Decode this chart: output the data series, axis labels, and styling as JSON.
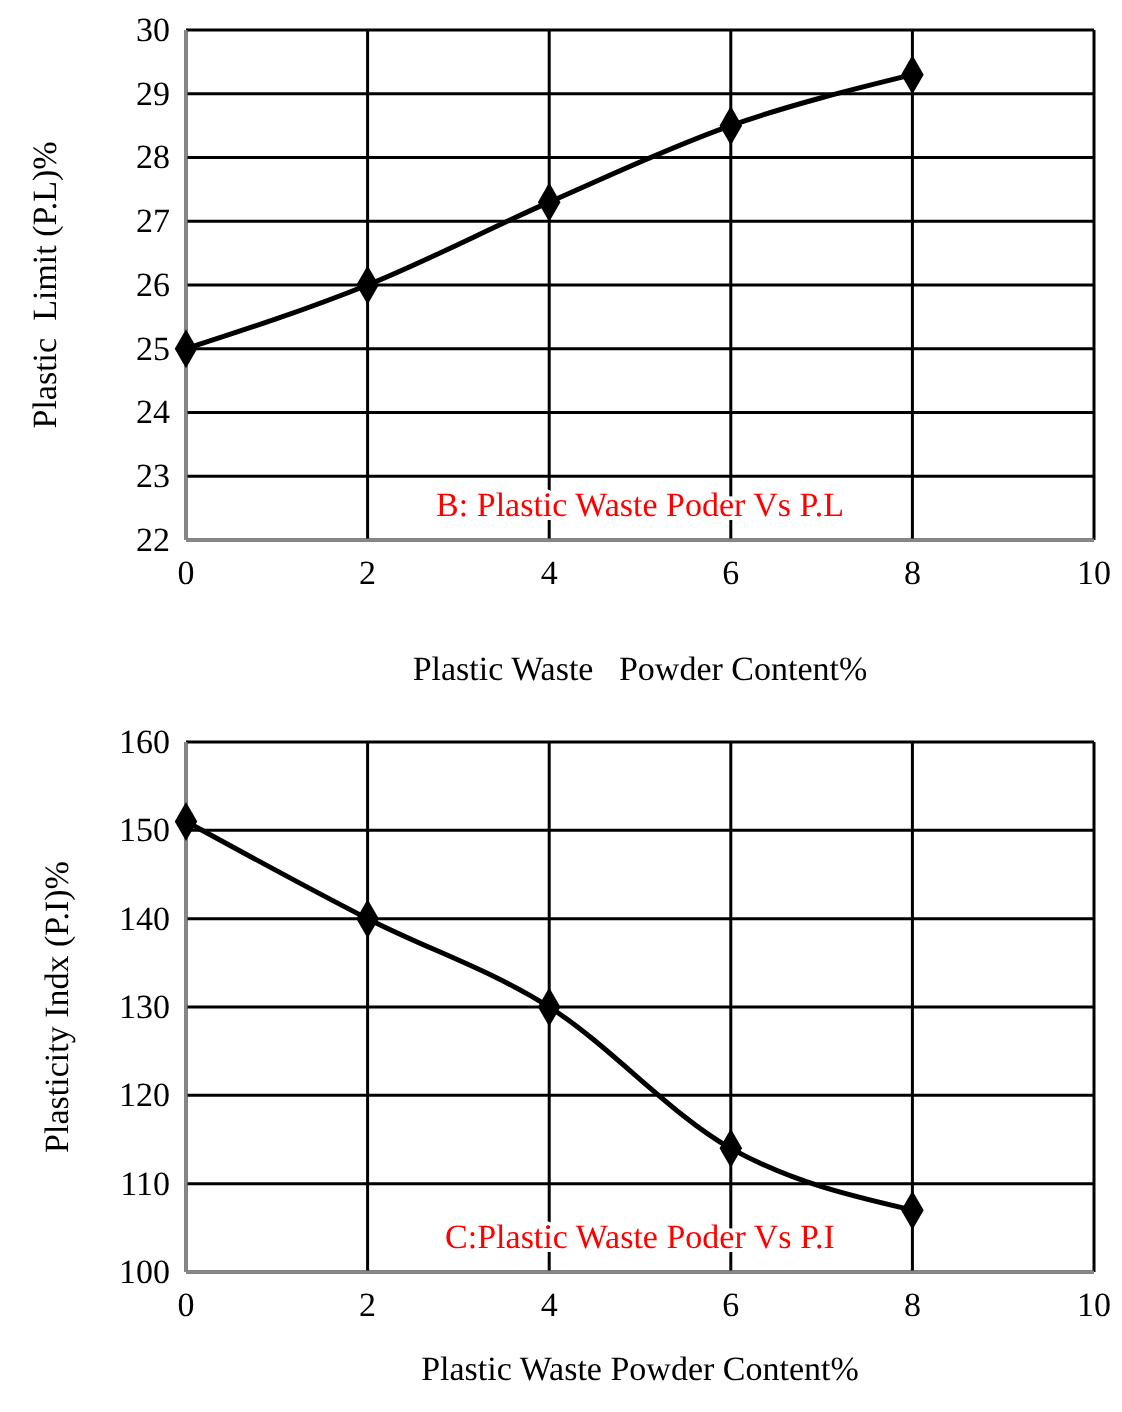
{
  "chart_data": [
    {
      "type": "line",
      "xlabel": "Plastic Waste   Powder Content%",
      "ylabel": "Plastic  Limit (P.L)%",
      "annotations": [
        "B: Plastic Waste Poder Vs P.L"
      ],
      "x": [
        0,
        2,
        4,
        6,
        8
      ],
      "series": [
        {
          "color": "#000000",
          "values": [
            25,
            26,
            27.3,
            28.5,
            29.3
          ]
        }
      ],
      "xlim": [
        0,
        10
      ],
      "xticks": [
        0,
        2,
        4,
        6,
        8,
        10
      ],
      "ylim": [
        22,
        30
      ],
      "yticks": [
        22,
        23,
        24,
        25,
        26,
        27,
        28,
        29,
        30
      ],
      "grid": true,
      "marker": "diamond",
      "line_style": "solid"
    },
    {
      "type": "line",
      "xlabel": "Plastic Waste Powder Content%",
      "ylabel": "Plasticity Indx (P.I)%",
      "annotations": [
        "C:Plastic Waste Poder Vs P.I"
      ],
      "x": [
        0,
        2,
        4,
        6,
        8
      ],
      "series": [
        {
          "color": "#000000",
          "values": [
            151,
            140,
            130,
            114,
            107
          ]
        }
      ],
      "xlim": [
        0,
        10
      ],
      "xticks": [
        0,
        2,
        4,
        6,
        8,
        10
      ],
      "ylim": [
        100,
        160
      ],
      "yticks": [
        100,
        110,
        120,
        130,
        140,
        150,
        160
      ],
      "grid": true,
      "marker": "diamond",
      "line_style": "solid"
    }
  ]
}
